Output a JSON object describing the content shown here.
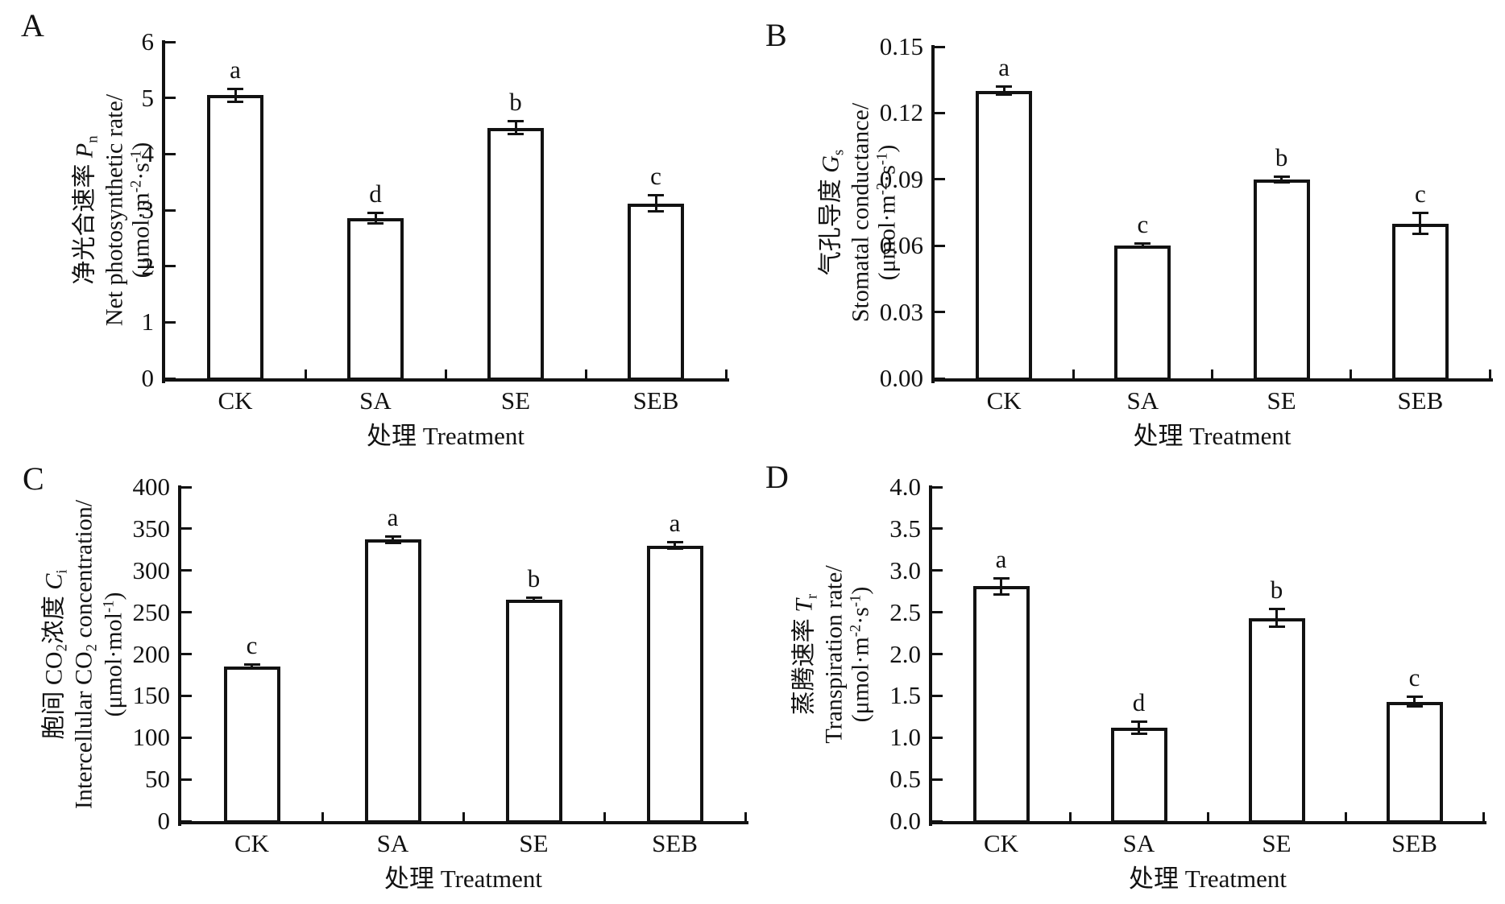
{
  "figure": {
    "background": "#ffffff",
    "ink": "#121212",
    "bar_fill": "#ffffff"
  },
  "chart_data": [
    {
      "panel": "A",
      "type": "bar",
      "categories": [
        "CK",
        "SA",
        "SE",
        "SEB"
      ],
      "values": [
        5.05,
        2.85,
        4.47,
        3.12
      ],
      "errors": [
        0.12,
        0.1,
        0.12,
        0.15
      ],
      "sig_letters": [
        "a",
        "d",
        "b",
        "c"
      ],
      "ylim": [
        0,
        6
      ],
      "ytick_step": 1,
      "ytick_decimals": 0,
      "grid": false,
      "legend": "none",
      "xlabel": "处理 Treatment",
      "ylabel_lines": [
        [
          {
            "t": "净光合速率 "
          },
          {
            "t": "P",
            "italic": true
          },
          {
            "t": "n",
            "sub": true
          }
        ],
        [
          {
            "t": "Net photosynthetic rate/"
          }
        ],
        [
          {
            "t": "(μmol·m"
          },
          {
            "t": "-2",
            "sup": true
          },
          {
            "t": "·s"
          },
          {
            "t": "-1",
            "sup": true
          },
          {
            "t": ")"
          }
        ]
      ]
    },
    {
      "panel": "B",
      "type": "bar",
      "categories": [
        "CK",
        "SA",
        "SE",
        "SEB"
      ],
      "values": [
        0.13,
        0.06,
        0.09,
        0.07
      ],
      "errors": [
        0.002,
        0.001,
        0.0015,
        0.005
      ],
      "sig_letters": [
        "a",
        "c",
        "b",
        "c"
      ],
      "ylim": [
        0,
        0.15
      ],
      "ytick_step": 0.03,
      "ytick_decimals": 2,
      "grid": false,
      "legend": "none",
      "xlabel": "处理 Treatment",
      "ylabel_lines": [
        [
          {
            "t": "气孔导度 "
          },
          {
            "t": "G",
            "italic": true
          },
          {
            "t": "s",
            "sub": true
          }
        ],
        [
          {
            "t": "Stomatal conductance/"
          }
        ],
        [
          {
            "t": "(μmol·m"
          },
          {
            "t": "-2",
            "sup": true
          },
          {
            "t": "·s"
          },
          {
            "t": "-1",
            "sup": true
          },
          {
            "t": ")"
          }
        ]
      ]
    },
    {
      "panel": "C",
      "type": "bar",
      "categories": [
        "CK",
        "SA",
        "SE",
        "SEB"
      ],
      "values": [
        185,
        337,
        265,
        330
      ],
      "errors": [
        3,
        4,
        3,
        4
      ],
      "sig_letters": [
        "c",
        "a",
        "b",
        "a"
      ],
      "ylim": [
        0,
        400
      ],
      "ytick_step": 50,
      "ytick_decimals": 0,
      "grid": false,
      "legend": "none",
      "xlabel": "处理 Treatment",
      "ylabel_lines": [
        [
          {
            "t": "胞间 CO"
          },
          {
            "t": "2",
            "sub": true
          },
          {
            "t": "浓度 "
          },
          {
            "t": "C",
            "italic": true
          },
          {
            "t": "i",
            "sub": true
          }
        ],
        [
          {
            "t": "Intercellular CO"
          },
          {
            "t": "2",
            "sub": true
          },
          {
            "t": " concentration/"
          }
        ],
        [
          {
            "t": "(μmol·mol"
          },
          {
            "t": "-1",
            "sup": true
          },
          {
            "t": ")"
          }
        ]
      ]
    },
    {
      "panel": "D",
      "type": "bar",
      "categories": [
        "CK",
        "SA",
        "SE",
        "SEB"
      ],
      "values": [
        2.81,
        1.12,
        2.43,
        1.43
      ],
      "errors": [
        0.1,
        0.08,
        0.11,
        0.06
      ],
      "sig_letters": [
        "a",
        "d",
        "b",
        "c"
      ],
      "ylim": [
        0,
        4
      ],
      "ytick_step": 0.5,
      "ytick_decimals": 1,
      "grid": false,
      "legend": "none",
      "xlabel": "处理 Treatment",
      "ylabel_lines": [
        [
          {
            "t": "蒸腾速率 "
          },
          {
            "t": "T",
            "italic": true
          },
          {
            "t": "r",
            "sub": true
          }
        ],
        [
          {
            "t": "Transpiration rate/"
          }
        ],
        [
          {
            "t": "(μmol·m"
          },
          {
            "t": "-2",
            "sup": true
          },
          {
            "t": "·s"
          },
          {
            "t": "-1",
            "sup": true
          },
          {
            "t": ")"
          }
        ]
      ]
    }
  ]
}
